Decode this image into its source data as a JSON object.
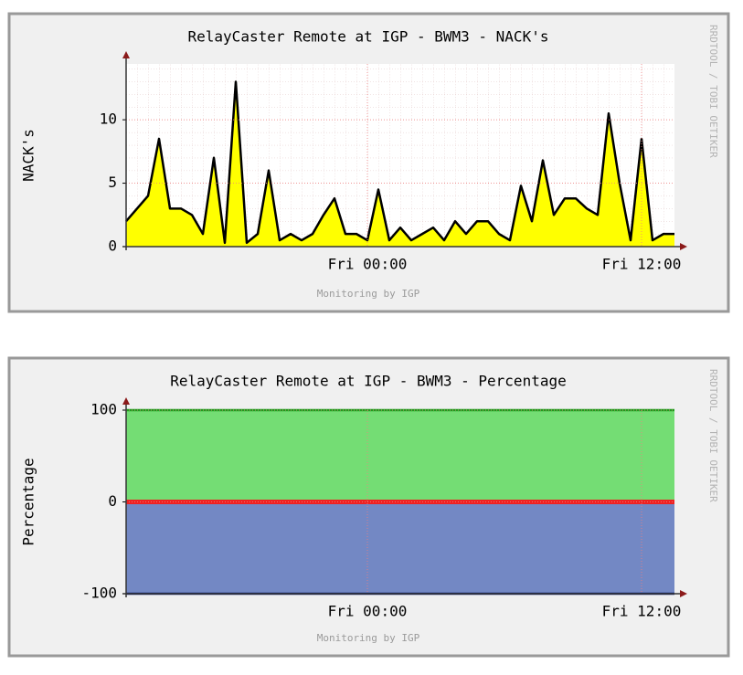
{
  "chart_data": [
    {
      "type": "area",
      "title": "RelayCaster Remote at IGP - BWM3 - NACK's",
      "y_label": "NACK's",
      "footer": "Monitoring by IGP",
      "side_text": "RRDTOOL / TOBI OETIKER",
      "categories": [
        null,
        null,
        null,
        null,
        null,
        null,
        null,
        null,
        null,
        null,
        null,
        null,
        null,
        null,
        null,
        null,
        null,
        null,
        null,
        null,
        null,
        null,
        "Fri 00:00",
        null,
        null,
        null,
        null,
        null,
        null,
        null,
        null,
        null,
        null,
        null,
        null,
        null,
        null,
        null,
        null,
        null,
        null,
        null,
        null,
        null,
        null,
        null,
        null,
        "Fri 12:00",
        null,
        null,
        null
      ],
      "series": [
        {
          "style": "area",
          "color": "#ffff00",
          "line_color": "#000000",
          "values": [
            2,
            3,
            4,
            8.5,
            3,
            3,
            2.5,
            1,
            7,
            0.3,
            13,
            0.3,
            1,
            6,
            0.5,
            1,
            0.5,
            1,
            2.5,
            3.8,
            1,
            1,
            0.5,
            4.5,
            0.5,
            1.5,
            0.5,
            1,
            1.5,
            0.5,
            2,
            1,
            2,
            2,
            1,
            0.5,
            4.8,
            2,
            6.8,
            2.5,
            3.8,
            3.8,
            3,
            2.5,
            10.5,
            5,
            0.5,
            8.5,
            0.5,
            1,
            1
          ]
        }
      ],
      "ylim": [
        0,
        14.4
      ],
      "yticks": [
        0,
        5,
        10
      ],
      "grid": true
    },
    {
      "type": "area",
      "title": "RelayCaster Remote at IGP - BWM3 - Percentage",
      "y_label": "Percentage",
      "footer": "Monitoring by IGP",
      "side_text": "RRDTOOL / TOBI OETIKER",
      "categories": [
        null,
        null,
        null,
        null,
        null,
        null,
        null,
        null,
        null,
        null,
        null,
        null,
        null,
        null,
        null,
        null,
        null,
        null,
        null,
        null,
        null,
        null,
        "Fri 00:00",
        null,
        null,
        null,
        null,
        null,
        null,
        null,
        null,
        null,
        null,
        null,
        null,
        null,
        null,
        null,
        null,
        null,
        null,
        null,
        null,
        null,
        null,
        null,
        null,
        "Fri 12:00",
        null,
        null,
        null
      ],
      "series": [
        {
          "style": "area",
          "color": "#74dd74",
          "line_color": "#1e9e1e",
          "values": [
            100,
            100,
            100,
            100,
            100,
            100,
            100,
            100,
            100,
            100,
            100,
            100,
            100,
            100,
            100,
            100,
            100,
            100,
            100,
            100,
            100,
            100,
            100,
            100,
            100,
            100,
            100,
            100,
            100,
            100,
            100,
            100,
            100,
            100,
            100,
            100,
            100,
            100,
            100,
            100,
            100,
            100,
            100,
            100,
            100,
            100,
            100,
            100,
            100,
            100,
            100
          ]
        },
        {
          "style": "area",
          "color": "#7388c4",
          "line_color": "#1a2a7a",
          "values": [
            -100,
            -100,
            -100,
            -100,
            -100,
            -100,
            -100,
            -100,
            -100,
            -100,
            -100,
            -100,
            -100,
            -100,
            -100,
            -100,
            -100,
            -100,
            -100,
            -100,
            -100,
            -100,
            -100,
            -100,
            -100,
            -100,
            -100,
            -100,
            -100,
            -100,
            -100,
            -100,
            -100,
            -100,
            -100,
            -100,
            -100,
            -100,
            -100,
            -100,
            -100,
            -100,
            -100,
            -100,
            -100,
            -100,
            -100,
            -100,
            -100,
            -100,
            -100
          ]
        },
        {
          "style": "line",
          "color": "#ee2222",
          "values": [
            0,
            0,
            0,
            0,
            0,
            0,
            0,
            0,
            0,
            0,
            0,
            0,
            0,
            0,
            0,
            0,
            0,
            0,
            0,
            0,
            0,
            0,
            0,
            0,
            0,
            0,
            0,
            0,
            0,
            0,
            0,
            0,
            0,
            0,
            0,
            0,
            0,
            0,
            0,
            0,
            0,
            0,
            0,
            0,
            0,
            0,
            0,
            0,
            0,
            0,
            0
          ]
        }
      ],
      "ylim": [
        -100,
        100
      ],
      "yticks": [
        -100,
        0,
        100
      ],
      "grid": true
    }
  ]
}
